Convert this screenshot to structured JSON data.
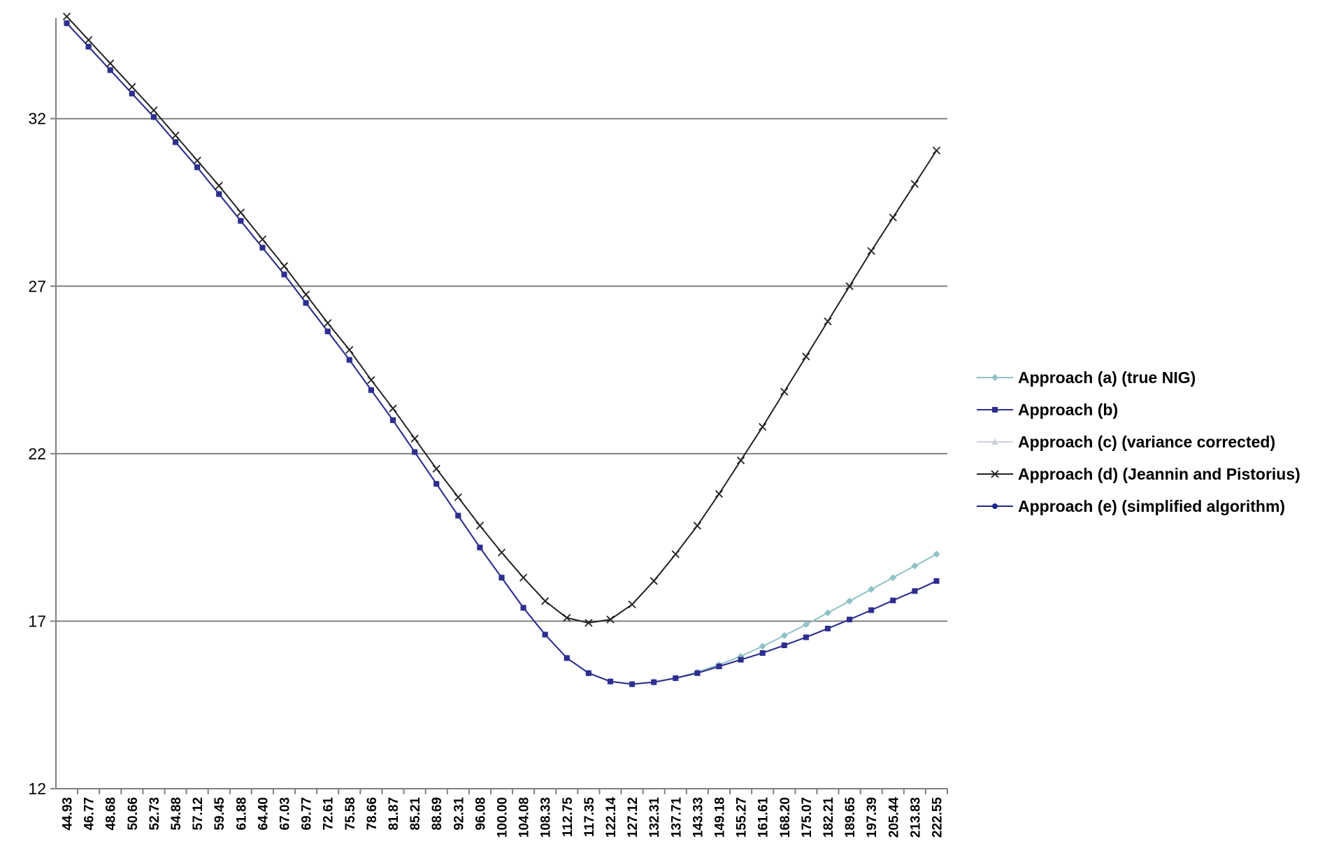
{
  "chart_data": {
    "type": "line",
    "title": "",
    "xlabel": "",
    "ylabel": "",
    "ylim": [
      12,
      35
    ],
    "yticks": [
      12,
      17,
      22,
      27,
      32
    ],
    "grid": "horizontal",
    "legend_position": "right",
    "categories": [
      "44.93",
      "46.77",
      "48.68",
      "50.66",
      "52.73",
      "54.88",
      "57.12",
      "59.45",
      "61.88",
      "64.40",
      "67.03",
      "69.77",
      "72.61",
      "75.58",
      "78.66",
      "81.87",
      "85.21",
      "88.69",
      "92.31",
      "96.08",
      "100.00",
      "104.08",
      "108.33",
      "112.75",
      "117.35",
      "122.14",
      "127.12",
      "132.31",
      "137.71",
      "143.33",
      "149.18",
      "155.27",
      "161.61",
      "168.20",
      "175.07",
      "182.21",
      "189.65",
      "197.39",
      "205.44",
      "213.83",
      "222.55"
    ],
    "series": [
      {
        "name": "Approach (a) (true NIG)",
        "color": "#8fc1c6",
        "marker": "diamond",
        "values": [
          34.85,
          34.15,
          33.45,
          32.75,
          32.05,
          31.3,
          30.55,
          29.75,
          28.95,
          28.15,
          27.35,
          26.5,
          25.65,
          24.8,
          23.9,
          23.0,
          22.05,
          21.1,
          20.15,
          19.2,
          18.3,
          17.4,
          16.6,
          15.9,
          15.45,
          15.2,
          15.12,
          15.18,
          15.3,
          15.48,
          15.7,
          15.95,
          16.25,
          16.57,
          16.9,
          17.25,
          17.6,
          17.95,
          18.3,
          18.65,
          19.0
        ]
      },
      {
        "name": "Approach (b)",
        "color": "#2e2e8f",
        "marker": "square",
        "values": [
          34.85,
          34.15,
          33.45,
          32.75,
          32.05,
          31.3,
          30.55,
          29.75,
          28.95,
          28.15,
          27.35,
          26.5,
          25.65,
          24.8,
          23.9,
          23.0,
          22.05,
          21.1,
          20.15,
          19.2,
          18.3,
          17.4,
          16.6,
          15.9,
          15.45,
          15.2,
          15.12,
          15.18,
          15.3,
          15.45,
          15.65,
          15.85,
          16.05,
          16.28,
          16.52,
          16.78,
          17.05,
          17.33,
          17.62,
          17.9,
          18.2
        ]
      },
      {
        "name": "Approach (c) (variance corrected)",
        "color": "#cdd1dd",
        "marker": "triangle",
        "values": [
          34.85,
          34.15,
          33.45,
          32.75,
          32.05,
          31.3,
          30.55,
          29.75,
          28.95,
          28.15,
          27.35,
          26.5,
          25.65,
          24.8,
          23.9,
          23.0,
          22.05,
          21.1,
          20.15,
          19.2,
          18.3,
          17.4,
          16.6,
          15.9,
          15.45,
          15.2,
          15.12,
          15.18,
          15.3,
          15.45,
          15.65,
          15.85,
          16.05,
          16.28,
          16.52,
          16.78,
          17.05,
          17.33,
          17.62,
          17.9,
          18.2
        ]
      },
      {
        "name": "Approach (d) (Jeannin and Pistorius)",
        "color": "#222222",
        "marker": "x",
        "values": [
          35.05,
          34.35,
          33.65,
          32.95,
          32.25,
          31.5,
          30.75,
          30.0,
          29.2,
          28.4,
          27.6,
          26.75,
          25.9,
          25.1,
          24.2,
          23.35,
          22.45,
          21.55,
          20.7,
          19.85,
          19.05,
          18.3,
          17.6,
          17.1,
          16.95,
          17.05,
          17.5,
          18.2,
          19.0,
          19.85,
          20.8,
          21.8,
          22.8,
          23.85,
          24.9,
          25.95,
          27.0,
          28.05,
          29.05,
          30.05,
          31.05
        ]
      },
      {
        "name": "Approach (e) (simplified algorithm)",
        "color": "#1f2a8a",
        "marker": "circle",
        "values": [
          34.85,
          34.15,
          33.45,
          32.75,
          32.05,
          31.3,
          30.55,
          29.75,
          28.95,
          28.15,
          27.35,
          26.5,
          25.65,
          24.8,
          23.9,
          23.0,
          22.05,
          21.1,
          20.15,
          19.2,
          18.3,
          17.4,
          16.6,
          15.9,
          15.45,
          15.2,
          15.12,
          15.18,
          15.3,
          15.45,
          15.65,
          15.85,
          16.05,
          16.28,
          16.52,
          16.78,
          17.05,
          17.33,
          17.62,
          17.9,
          18.2
        ]
      }
    ]
  }
}
